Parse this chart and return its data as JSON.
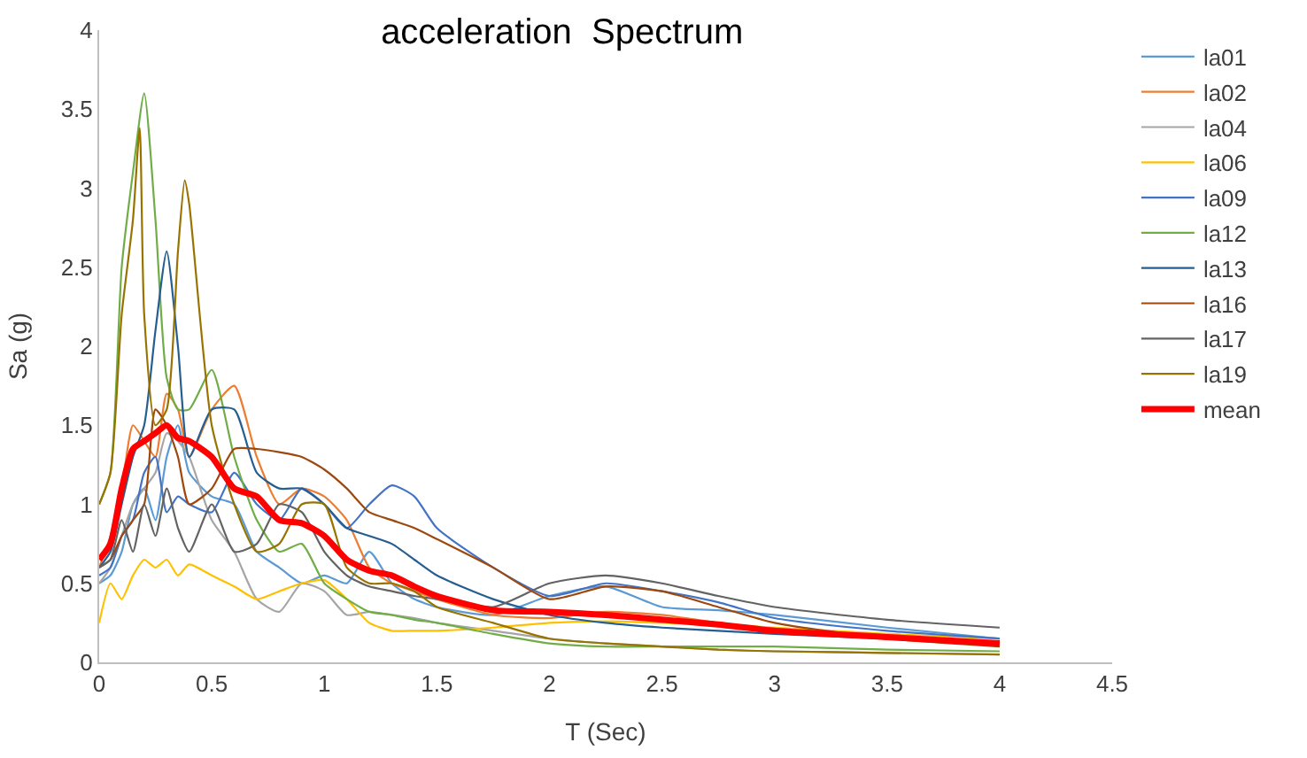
{
  "chart_data": {
    "type": "line",
    "title": "acceleration  Spectrum",
    "xlabel": "T (Sec)",
    "ylabel": "Sa (g)",
    "x": [
      0,
      0.05,
      0.1,
      0.15,
      0.2,
      0.25,
      0.3,
      0.35,
      0.4,
      0.5,
      0.6,
      0.7,
      0.8,
      0.9,
      1.0,
      1.1,
      1.2,
      1.3,
      1.4,
      1.5,
      1.75,
      2,
      2.25,
      2.5,
      2.75,
      3,
      3.5,
      4
    ],
    "xlim": [
      0,
      4.5
    ],
    "xticks": [
      0,
      0.5,
      1,
      1.5,
      2,
      2.5,
      3,
      3.5,
      4,
      4.5
    ],
    "ylim": [
      0,
      4
    ],
    "yticks": [
      0,
      0.5,
      1,
      1.5,
      2,
      2.5,
      3,
      3.5,
      4
    ],
    "grid": false,
    "legend": "right",
    "marker": "none",
    "line_style": "solid",
    "series": [
      {
        "name": "la01",
        "color": "#5b9bd5",
        "values": [
          0.5,
          0.55,
          0.7,
          1.0,
          1.1,
          0.9,
          1.3,
          1.5,
          1.2,
          1.05,
          1.0,
          0.7,
          0.6,
          0.5,
          0.55,
          0.5,
          0.7,
          0.5,
          0.4,
          0.35,
          0.3,
          0.42,
          0.48,
          0.35,
          0.33,
          0.3,
          0.22,
          0.15
        ]
      },
      {
        "name": "la02",
        "color": "#ed7d31",
        "values": [
          0.6,
          0.8,
          1.1,
          1.5,
          1.4,
          1.3,
          1.7,
          1.6,
          1.3,
          1.6,
          1.75,
          1.3,
          1.0,
          1.1,
          1.05,
          0.9,
          0.6,
          0.5,
          0.45,
          0.4,
          0.3,
          0.28,
          0.32,
          0.3,
          0.25,
          0.2,
          0.15,
          0.12
        ]
      },
      {
        "name": "la04",
        "color": "#a5a5a5",
        "values": [
          0.5,
          0.6,
          0.8,
          1.0,
          1.1,
          1.2,
          1.45,
          1.4,
          1.3,
          0.9,
          0.7,
          0.4,
          0.32,
          0.5,
          0.45,
          0.3,
          0.32,
          0.3,
          0.28,
          0.25,
          0.2,
          0.15,
          0.12,
          0.1,
          0.08,
          0.07,
          0.06,
          0.05
        ]
      },
      {
        "name": "la06",
        "color": "#ffc000",
        "values": [
          0.25,
          0.5,
          0.4,
          0.55,
          0.65,
          0.6,
          0.65,
          0.55,
          0.62,
          0.55,
          0.48,
          0.4,
          0.45,
          0.5,
          0.52,
          0.4,
          0.25,
          0.2,
          0.2,
          0.2,
          0.22,
          0.25,
          0.26,
          0.25,
          0.24,
          0.22,
          0.18,
          0.15
        ]
      },
      {
        "name": "la09",
        "color": "#4472c4",
        "values": [
          0.55,
          0.6,
          0.8,
          0.9,
          1.2,
          1.3,
          0.95,
          1.05,
          1.0,
          0.95,
          1.2,
          1.0,
          0.9,
          1.1,
          1.0,
          0.85,
          1.0,
          1.12,
          1.05,
          0.85,
          0.6,
          0.42,
          0.5,
          0.45,
          0.38,
          0.28,
          0.2,
          0.15
        ]
      },
      {
        "name": "la12",
        "color": "#70ad47",
        "values": [
          1.0,
          1.2,
          2.5,
          3.1,
          3.6,
          2.8,
          1.8,
          1.6,
          1.6,
          1.85,
          1.3,
          0.9,
          0.7,
          0.75,
          0.5,
          0.4,
          0.32,
          0.3,
          0.27,
          0.25,
          0.18,
          0.12,
          0.1,
          0.1,
          0.1,
          0.1,
          0.08,
          0.07
        ]
      },
      {
        "name": "la13",
        "color": "#255e91",
        "values": [
          0.6,
          0.7,
          1.0,
          1.3,
          1.5,
          2.1,
          2.6,
          2.0,
          1.3,
          1.6,
          1.6,
          1.2,
          1.1,
          1.1,
          1.0,
          0.85,
          0.8,
          0.75,
          0.65,
          0.55,
          0.4,
          0.3,
          0.25,
          0.22,
          0.2,
          0.18,
          0.15,
          0.12
        ]
      },
      {
        "name": "la16",
        "color": "#9e480e",
        "values": [
          0.6,
          0.65,
          0.8,
          0.9,
          1.0,
          1.6,
          1.5,
          1.3,
          1.0,
          1.1,
          1.35,
          1.35,
          1.33,
          1.3,
          1.22,
          1.1,
          0.95,
          0.9,
          0.85,
          0.78,
          0.6,
          0.4,
          0.48,
          0.45,
          0.35,
          0.25,
          0.15,
          0.1
        ]
      },
      {
        "name": "la17",
        "color": "#636363",
        "values": [
          0.6,
          0.65,
          0.9,
          0.7,
          1.0,
          0.8,
          1.1,
          0.85,
          0.7,
          1.0,
          0.7,
          0.75,
          1.0,
          0.95,
          0.7,
          0.55,
          0.48,
          0.45,
          0.42,
          0.4,
          0.35,
          0.5,
          0.55,
          0.5,
          0.42,
          0.35,
          0.27,
          0.22
        ]
      },
      {
        "name": "la19",
        "color": "#997300",
        "x": [
          0,
          0.05,
          0.1,
          0.15,
          0.18,
          0.2,
          0.25,
          0.3,
          0.35,
          0.38,
          0.4,
          0.5,
          0.6,
          0.7,
          0.8,
          0.9,
          1.0,
          1.1,
          1.2,
          1.3,
          1.4,
          1.5,
          1.75,
          2,
          2.25,
          2.5,
          2.75,
          3,
          3.5,
          4
        ],
        "values": [
          1.0,
          1.2,
          2.2,
          2.8,
          3.38,
          2.2,
          1.5,
          1.6,
          2.6,
          3.05,
          2.9,
          1.5,
          1.0,
          0.7,
          0.75,
          1.0,
          1.0,
          0.6,
          0.5,
          0.5,
          0.45,
          0.35,
          0.25,
          0.15,
          0.12,
          0.1,
          0.08,
          0.07,
          0.06,
          0.05
        ]
      },
      {
        "name": "mean",
        "color": "#ff0000",
        "values": [
          0.65,
          0.75,
          1.1,
          1.35,
          1.4,
          1.45,
          1.5,
          1.42,
          1.4,
          1.3,
          1.1,
          1.05,
          0.9,
          0.88,
          0.8,
          0.65,
          0.58,
          0.55,
          0.48,
          0.42,
          0.33,
          0.32,
          0.3,
          0.27,
          0.24,
          0.2,
          0.16,
          0.12
        ]
      }
    ]
  }
}
